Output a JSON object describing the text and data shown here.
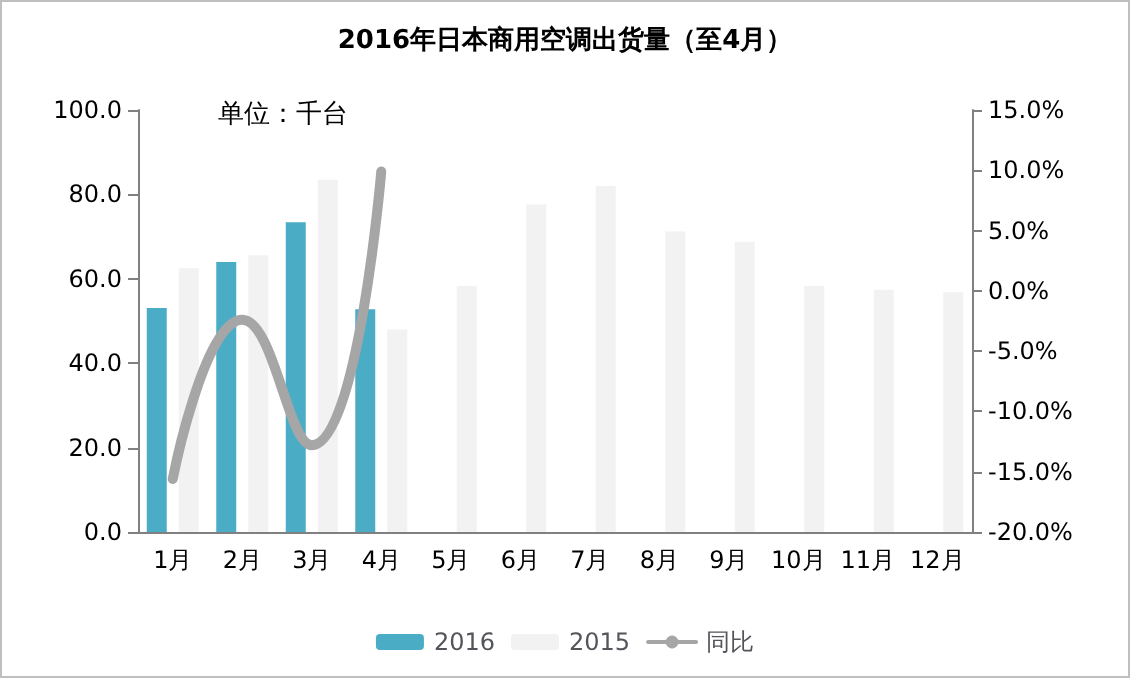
{
  "chart_data": {
    "type": "bar",
    "title": "2016年日本商用空调出货量（至4月）",
    "annotations": [
      "单位：千台"
    ],
    "categories": [
      "1月",
      "2月",
      "3月",
      "4月",
      "5月",
      "6月",
      "7月",
      "8月",
      "9月",
      "10月",
      "11月",
      "12月"
    ],
    "series": [
      {
        "name": "2016",
        "color": "#4bacc6",
        "values": [
          53.1,
          64.0,
          73.4,
          52.8,
          null,
          null,
          null,
          null,
          null,
          null,
          null,
          null
        ]
      },
      {
        "name": "2015",
        "color": "#f2f2f2",
        "values": [
          62.5,
          65.6,
          83.5,
          48.0,
          58.3,
          77.6,
          82.0,
          71.2,
          68.8,
          58.3,
          57.4,
          56.8
        ]
      },
      {
        "name": "同比",
        "type": "line",
        "axis": "y2",
        "color": "#a6a6a6",
        "values": [
          -15.6,
          -2.4,
          -12.8,
          9.9,
          null,
          null,
          null,
          null,
          null,
          null,
          null,
          null
        ]
      }
    ],
    "ylim": [
      0,
      100
    ],
    "yticks": [
      {
        "value": 0,
        "label": "0.0"
      },
      {
        "value": 20,
        "label": "20.0"
      },
      {
        "value": 40,
        "label": "40.0"
      },
      {
        "value": 60,
        "label": "60.0"
      },
      {
        "value": 80,
        "label": "80.0"
      },
      {
        "value": 100,
        "label": "100.0"
      }
    ],
    "y2lim": [
      -20,
      15
    ],
    "y2ticks": [
      {
        "value": -20,
        "label": "-20.0%"
      },
      {
        "value": -15,
        "label": "-15.0%"
      },
      {
        "value": -10,
        "label": "-10.0%"
      },
      {
        "value": -5,
        "label": "-5.0%"
      },
      {
        "value": 0,
        "label": "0.0%"
      },
      {
        "value": 5,
        "label": "5.0%"
      },
      {
        "value": 10,
        "label": "10.0%"
      },
      {
        "value": 15,
        "label": "15.0%"
      }
    ],
    "grid": false,
    "legend": "bottom"
  }
}
